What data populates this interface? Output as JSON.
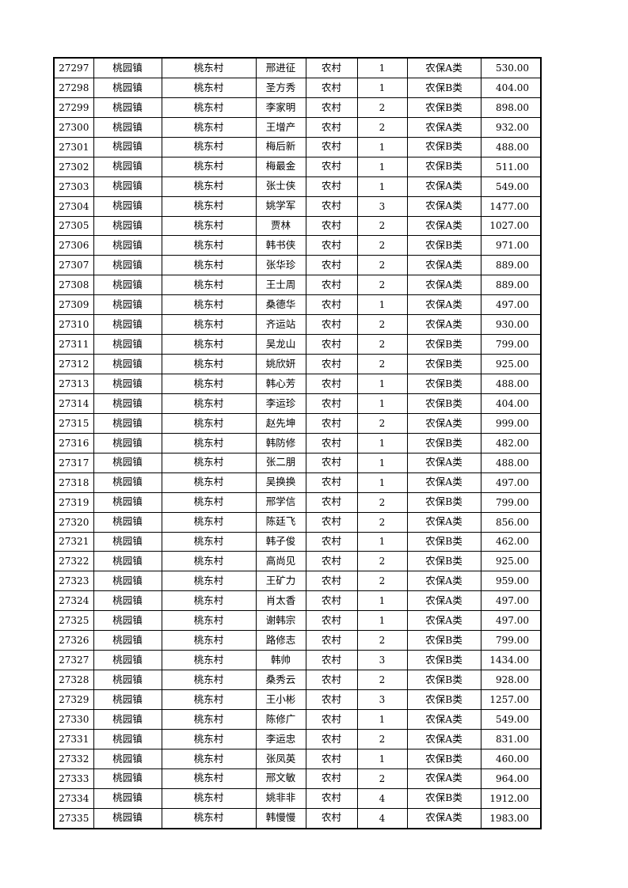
{
  "rows": [
    [
      "27297",
      "桃园镇",
      "桃东村",
      "邢进征",
      "农村",
      "1",
      "农保A类",
      "530.00"
    ],
    [
      "27298",
      "桃园镇",
      "桃东村",
      "圣方秀",
      "农村",
      "1",
      "农保B类",
      "404.00"
    ],
    [
      "27299",
      "桃园镇",
      "桃东村",
      "李家明",
      "农村",
      "2",
      "农保B类",
      "898.00"
    ],
    [
      "27300",
      "桃园镇",
      "桃东村",
      "王增产",
      "农村",
      "2",
      "农保A类",
      "932.00"
    ],
    [
      "27301",
      "桃园镇",
      "桃东村",
      "梅后新",
      "农村",
      "1",
      "农保B类",
      "488.00"
    ],
    [
      "27302",
      "桃园镇",
      "桃东村",
      "梅最金",
      "农村",
      "1",
      "农保B类",
      "511.00"
    ],
    [
      "27303",
      "桃园镇",
      "桃东村",
      "张士侠",
      "农村",
      "1",
      "农保A类",
      "549.00"
    ],
    [
      "27304",
      "桃园镇",
      "桃东村",
      "姚学军",
      "农村",
      "3",
      "农保A类",
      "1477.00"
    ],
    [
      "27305",
      "桃园镇",
      "桃东村",
      "贾林",
      "农村",
      "2",
      "农保A类",
      "1027.00"
    ],
    [
      "27306",
      "桃园镇",
      "桃东村",
      "韩书侠",
      "农村",
      "2",
      "农保B类",
      "971.00"
    ],
    [
      "27307",
      "桃园镇",
      "桃东村",
      "张华珍",
      "农村",
      "2",
      "农保A类",
      "889.00"
    ],
    [
      "27308",
      "桃园镇",
      "桃东村",
      "王士周",
      "农村",
      "2",
      "农保A类",
      "889.00"
    ],
    [
      "27309",
      "桃园镇",
      "桃东村",
      "桑德华",
      "农村",
      "1",
      "农保A类",
      "497.00"
    ],
    [
      "27310",
      "桃园镇",
      "桃东村",
      "齐运站",
      "农村",
      "2",
      "农保A类",
      "930.00"
    ],
    [
      "27311",
      "桃园镇",
      "桃东村",
      "吴龙山",
      "农村",
      "2",
      "农保B类",
      "799.00"
    ],
    [
      "27312",
      "桃园镇",
      "桃东村",
      "姚欣妍",
      "农村",
      "2",
      "农保B类",
      "925.00"
    ],
    [
      "27313",
      "桃园镇",
      "桃东村",
      "韩心芳",
      "农村",
      "1",
      "农保B类",
      "488.00"
    ],
    [
      "27314",
      "桃园镇",
      "桃东村",
      "李运珍",
      "农村",
      "1",
      "农保B类",
      "404.00"
    ],
    [
      "27315",
      "桃园镇",
      "桃东村",
      "赵先坤",
      "农村",
      "2",
      "农保A类",
      "999.00"
    ],
    [
      "27316",
      "桃园镇",
      "桃东村",
      "韩防修",
      "农村",
      "1",
      "农保B类",
      "482.00"
    ],
    [
      "27317",
      "桃园镇",
      "桃东村",
      "张二朋",
      "农村",
      "1",
      "农保A类",
      "488.00"
    ],
    [
      "27318",
      "桃园镇",
      "桃东村",
      "吴换换",
      "农村",
      "1",
      "农保A类",
      "497.00"
    ],
    [
      "27319",
      "桃园镇",
      "桃东村",
      "邢学信",
      "农村",
      "2",
      "农保B类",
      "799.00"
    ],
    [
      "27320",
      "桃园镇",
      "桃东村",
      "陈廷飞",
      "农村",
      "2",
      "农保A类",
      "856.00"
    ],
    [
      "27321",
      "桃园镇",
      "桃东村",
      "韩子俊",
      "农村",
      "1",
      "农保B类",
      "462.00"
    ],
    [
      "27322",
      "桃园镇",
      "桃东村",
      "高尚见",
      "农村",
      "2",
      "农保B类",
      "925.00"
    ],
    [
      "27323",
      "桃园镇",
      "桃东村",
      "王矿力",
      "农村",
      "2",
      "农保A类",
      "959.00"
    ],
    [
      "27324",
      "桃园镇",
      "桃东村",
      "肖太香",
      "农村",
      "1",
      "农保A类",
      "497.00"
    ],
    [
      "27325",
      "桃园镇",
      "桃东村",
      "谢韩宗",
      "农村",
      "1",
      "农保A类",
      "497.00"
    ],
    [
      "27326",
      "桃园镇",
      "桃东村",
      "路修志",
      "农村",
      "2",
      "农保B类",
      "799.00"
    ],
    [
      "27327",
      "桃园镇",
      "桃东村",
      "韩帅",
      "农村",
      "3",
      "农保B类",
      "1434.00"
    ],
    [
      "27328",
      "桃园镇",
      "桃东村",
      "桑秀云",
      "农村",
      "2",
      "农保B类",
      "928.00"
    ],
    [
      "27329",
      "桃园镇",
      "桃东村",
      "王小彬",
      "农村",
      "3",
      "农保B类",
      "1257.00"
    ],
    [
      "27330",
      "桃园镇",
      "桃东村",
      "陈修广",
      "农村",
      "1",
      "农保A类",
      "549.00"
    ],
    [
      "27331",
      "桃园镇",
      "桃东村",
      "李运忠",
      "农村",
      "2",
      "农保A类",
      "831.00"
    ],
    [
      "27332",
      "桃园镇",
      "桃东村",
      "张凤英",
      "农村",
      "1",
      "农保B类",
      "460.00"
    ],
    [
      "27333",
      "桃园镇",
      "桃东村",
      "邢文敏",
      "农村",
      "2",
      "农保A类",
      "964.00"
    ],
    [
      "27334",
      "桃园镇",
      "桃东村",
      "姚非非",
      "农村",
      "4",
      "农保B类",
      "1912.00"
    ],
    [
      "27335",
      "桃园镇",
      "桃东村",
      "韩慢慢",
      "农村",
      "4",
      "农保A类",
      "1983.00"
    ]
  ]
}
